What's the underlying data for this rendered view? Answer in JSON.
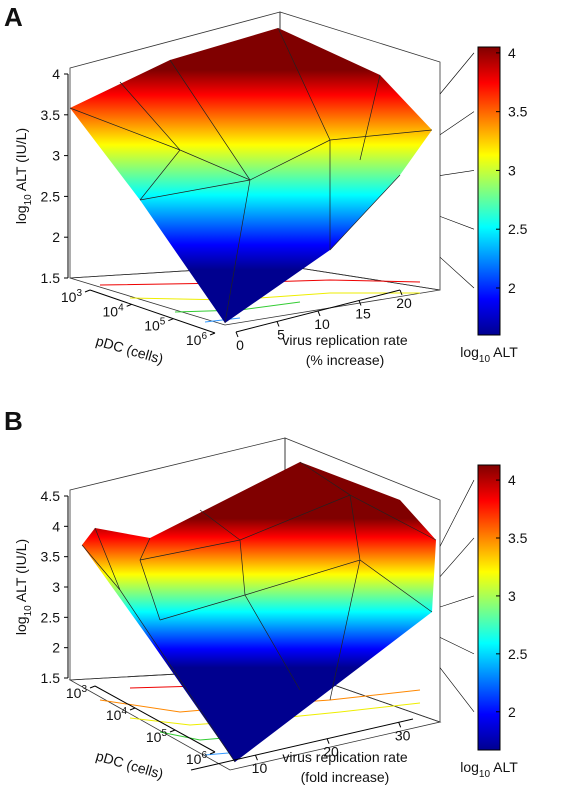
{
  "chart_data": [
    {
      "type": "surface",
      "panel": "A",
      "zlabel": {
        "text": "log",
        "sub": "10",
        "rest": " ALT (IU/L)"
      },
      "zlim": [
        1.5,
        4
      ],
      "zticks": [
        1.5,
        2,
        2.5,
        3,
        3.5,
        4
      ],
      "xlabel": "pDC (cells)",
      "xscale": "log",
      "xlim": [
        1000,
        1000000
      ],
      "xticks": [
        {
          "value": 1000,
          "label": "10",
          "sup": "3"
        },
        {
          "value": 10000,
          "label": "10",
          "sup": "4"
        },
        {
          "value": 100000,
          "label": "10",
          "sup": "5"
        },
        {
          "value": 1000000,
          "label": "10",
          "sup": "6"
        }
      ],
      "ylabel": [
        "virus replication rate",
        "(% increase)"
      ],
      "ylim": [
        0,
        20
      ],
      "yticks": [
        0,
        5,
        10,
        15,
        20
      ],
      "colormap": "jet",
      "colorbar": {
        "clim": [
          1.6,
          4.05
        ],
        "ticks": [
          2,
          2.5,
          3,
          3.5,
          4
        ],
        "label": {
          "text": "log",
          "sub": "10",
          "rest": " ALT"
        }
      }
    },
    {
      "type": "surface",
      "panel": "B",
      "zlabel": {
        "text": "log",
        "sub": "10",
        "rest": " ALT (IU/L)"
      },
      "zlim": [
        1.5,
        4.5
      ],
      "zticks": [
        1.5,
        2,
        2.5,
        3,
        3.5,
        4,
        4.5
      ],
      "xlabel": "pDC (cells)",
      "xscale": "log",
      "xlim": [
        1000,
        1000000
      ],
      "xticks": [
        {
          "value": 1000,
          "label": "10",
          "sup": "3"
        },
        {
          "value": 10000,
          "label": "10",
          "sup": "4"
        },
        {
          "value": 100000,
          "label": "10",
          "sup": "5"
        },
        {
          "value": 1000000,
          "label": "10",
          "sup": "6"
        }
      ],
      "ylabel": [
        "virus replication rate",
        "(fold increase)"
      ],
      "ylim": [
        1,
        32
      ],
      "yticks": [
        10,
        20,
        30
      ],
      "colormap": "jet",
      "colorbar": {
        "clim": [
          1.67,
          4.13
        ],
        "ticks": [
          2,
          2.5,
          3,
          3.5,
          4
        ],
        "label": {
          "text": "log",
          "sub": "10",
          "rest": " ALT"
        }
      }
    }
  ]
}
